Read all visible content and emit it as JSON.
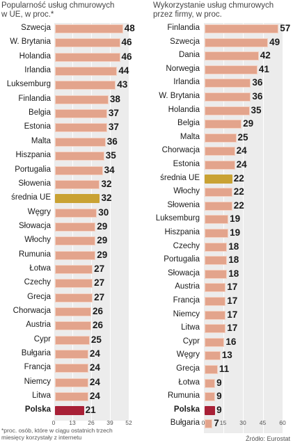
{
  "chart_data": [
    {
      "type": "bar",
      "orientation": "horizontal",
      "title": "Popularność usług chmurowych\nw UE, w proc.*",
      "categories": [
        "Szwecja",
        "W. Brytania",
        "Holandia",
        "Irlandia",
        "Luksemburg",
        "Finlandia",
        "Belgia",
        "Estonia",
        "Malta",
        "Hiszpania",
        "Portugalia",
        "Słowenia",
        "średnia UE",
        "Węgry",
        "Słowacja",
        "Włochy",
        "Rumunia",
        "Łotwa",
        "Czechy",
        "Grecja",
        "Chorwacja",
        "Austria",
        "Cypr",
        "Bułgaria",
        "Francja",
        "Niemcy",
        "Litwa",
        "Polska"
      ],
      "values": [
        48,
        46,
        46,
        44,
        43,
        38,
        37,
        37,
        36,
        35,
        34,
        32,
        32,
        30,
        29,
        29,
        29,
        27,
        27,
        27,
        26,
        26,
        25,
        24,
        24,
        24,
        24,
        21
      ],
      "xlim": [
        0,
        52
      ],
      "ticks": [
        "0",
        "13",
        "26",
        "39",
        "52"
      ],
      "highlight": {
        "średnia UE": "#c9a233",
        "Polska": "#a82036"
      },
      "bar_color": "#e3a48c"
    },
    {
      "type": "bar",
      "orientation": "horizontal",
      "title": "Wykorzystanie usług chmurowych\nprzez firmy, w proc.",
      "categories": [
        "Finlandia",
        "Szwecja",
        "Dania",
        "Norwegia",
        "Irlandia",
        "W. Brytania",
        "Holandia",
        "Belgia",
        "Malta",
        "Chorwacja",
        "Estonia",
        "średnia UE",
        "Włochy",
        "Słowenia",
        "Luksemburg",
        "Hiszpania",
        "Czechy",
        "Portugalia",
        "Słowacja",
        "Austria",
        "Francja",
        "Niemcy",
        "Litwa",
        "Cypr",
        "Węgry",
        "Grecja",
        "Łotwa",
        "Rumunia",
        "Polska",
        "Bułgaria"
      ],
      "values": [
        57,
        49,
        42,
        41,
        36,
        36,
        35,
        29,
        25,
        24,
        24,
        22,
        22,
        22,
        19,
        19,
        18,
        18,
        18,
        17,
        17,
        17,
        17,
        16,
        13,
        11,
        9,
        9,
        9,
        7
      ],
      "xlim": [
        0,
        60
      ],
      "ticks": [
        "0",
        "15",
        "30",
        "45",
        "60"
      ],
      "highlight": {
        "średnia UE": "#c9a233",
        "Polska": "#a82036"
      },
      "bar_color": "#e3a48c"
    }
  ],
  "footnote": "*proc. osób, które w ciągu ostatnich trzech\nmiesięcy korzystały z internetu",
  "source": "Źródło: Eurostat"
}
